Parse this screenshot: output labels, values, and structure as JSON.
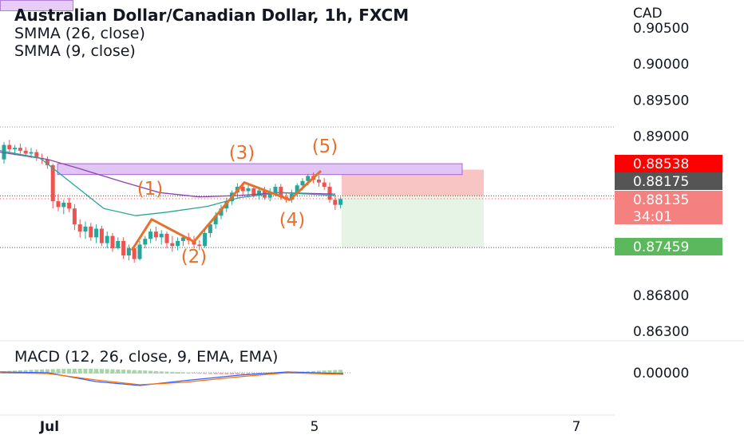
{
  "header": {
    "title": "Australian Dollar/Canadian Dollar, 1h, FXCM",
    "ind1": "SMMA (26, close)",
    "ind2": "SMMA (9, close)",
    "macd": "MACD (12, 26, close, 9, EMA, EMA)"
  },
  "colors": {
    "up": "#26a69a",
    "down": "#ef5350",
    "wave": "#e8702a",
    "smma26": "#8e44ad",
    "smma9": "#26a69a",
    "zone": "#e1c6f5",
    "loss": "#f8c4c4",
    "profit": "#e6f4e6",
    "tagRed": "#ff0000",
    "tagDark": "#555555",
    "tagPink": "#f48080",
    "tagGreen": "#5cb85c",
    "macd": "#2962ff",
    "signal": "#ff6d00"
  },
  "chart_data": {
    "type": "candlestick",
    "symbol": "Australian Dollar/Canadian Dollar",
    "timeframe": "1h",
    "currency": "CAD",
    "y_ticks": [
      "0.90500",
      "0.90000",
      "0.89500",
      "0.89000",
      "0.86800",
      "0.86300"
    ],
    "ylim": [
      0.86,
      0.907
    ],
    "x_ticks": [
      "Jul",
      "5",
      "7"
    ],
    "candles": [
      [
        0.8868,
        0.8892,
        0.8862,
        0.8888
      ],
      [
        0.8888,
        0.8895,
        0.8878,
        0.8882
      ],
      [
        0.8882,
        0.8888,
        0.8874,
        0.8884
      ],
      [
        0.8884,
        0.889,
        0.8876,
        0.888
      ],
      [
        0.888,
        0.8885,
        0.8872,
        0.8876
      ],
      [
        0.8876,
        0.8884,
        0.887,
        0.8878
      ],
      [
        0.8878,
        0.8882,
        0.8866,
        0.887
      ],
      [
        0.887,
        0.8876,
        0.8862,
        0.8868
      ],
      [
        0.8868,
        0.8872,
        0.8855,
        0.886
      ],
      [
        0.886,
        0.8862,
        0.88,
        0.881
      ],
      [
        0.881,
        0.882,
        0.8796,
        0.8802
      ],
      [
        0.8802,
        0.8812,
        0.8792,
        0.8808
      ],
      [
        0.8808,
        0.8815,
        0.8795,
        0.88
      ],
      [
        0.88,
        0.8806,
        0.877,
        0.8778
      ],
      [
        0.8778,
        0.8785,
        0.876,
        0.8768
      ],
      [
        0.8768,
        0.8782,
        0.8758,
        0.8775
      ],
      [
        0.8775,
        0.878,
        0.8755,
        0.876
      ],
      [
        0.876,
        0.8778,
        0.8752,
        0.8772
      ],
      [
        0.8772,
        0.8776,
        0.8748,
        0.8752
      ],
      [
        0.8752,
        0.8768,
        0.8745,
        0.8762
      ],
      [
        0.8762,
        0.8766,
        0.874,
        0.8745
      ],
      [
        0.8745,
        0.876,
        0.8743,
        0.8755
      ],
      [
        0.8755,
        0.876,
        0.873,
        0.8735
      ],
      [
        0.8735,
        0.875,
        0.8728,
        0.8745
      ],
      [
        0.8745,
        0.8748,
        0.8725,
        0.873
      ],
      [
        0.873,
        0.8755,
        0.8728,
        0.875
      ],
      [
        0.875,
        0.8762,
        0.8745,
        0.8758
      ],
      [
        0.8758,
        0.8772,
        0.8752,
        0.8768
      ],
      [
        0.8768,
        0.8775,
        0.8755,
        0.876
      ],
      [
        0.876,
        0.877,
        0.875,
        0.8765
      ],
      [
        0.8765,
        0.8768,
        0.8745,
        0.8752
      ],
      [
        0.8752,
        0.8762,
        0.874,
        0.8748
      ],
      [
        0.8748,
        0.876,
        0.8742,
        0.8755
      ],
      [
        0.8755,
        0.8764,
        0.8748,
        0.876
      ],
      [
        0.876,
        0.8766,
        0.875,
        0.8756
      ],
      [
        0.8756,
        0.8762,
        0.8745,
        0.875
      ],
      [
        0.875,
        0.8756,
        0.8742,
        0.8748
      ],
      [
        0.8748,
        0.877,
        0.8746,
        0.8766
      ],
      [
        0.8766,
        0.8782,
        0.876,
        0.8778
      ],
      [
        0.8778,
        0.8795,
        0.8772,
        0.879
      ],
      [
        0.879,
        0.8805,
        0.8785,
        0.88
      ],
      [
        0.88,
        0.8815,
        0.8795,
        0.881
      ],
      [
        0.881,
        0.8825,
        0.8805,
        0.8822
      ],
      [
        0.8822,
        0.8835,
        0.8815,
        0.883
      ],
      [
        0.883,
        0.8836,
        0.8818,
        0.8824
      ],
      [
        0.8824,
        0.8834,
        0.8815,
        0.8828
      ],
      [
        0.8828,
        0.8832,
        0.8815,
        0.8818
      ],
      [
        0.8818,
        0.883,
        0.8812,
        0.8825
      ],
      [
        0.8825,
        0.883,
        0.8812,
        0.8815
      ],
      [
        0.8815,
        0.8828,
        0.881,
        0.8822
      ],
      [
        0.8822,
        0.8834,
        0.8818,
        0.883
      ],
      [
        0.883,
        0.8834,
        0.8812,
        0.8816
      ],
      [
        0.8816,
        0.8822,
        0.8808,
        0.8812
      ],
      [
        0.8812,
        0.8826,
        0.8808,
        0.882
      ],
      [
        0.882,
        0.8835,
        0.8816,
        0.8832
      ],
      [
        0.8832,
        0.8842,
        0.8825,
        0.8838
      ],
      [
        0.8838,
        0.8848,
        0.8832,
        0.8845
      ],
      [
        0.8845,
        0.885,
        0.8835,
        0.884
      ],
      [
        0.884,
        0.8846,
        0.883,
        0.8836
      ],
      [
        0.8836,
        0.8842,
        0.8826,
        0.883
      ],
      [
        0.883,
        0.8836,
        0.8808,
        0.8812
      ],
      [
        0.8812,
        0.8818,
        0.8798,
        0.8805
      ],
      [
        0.8805,
        0.8816,
        0.88,
        0.8813
      ]
    ],
    "smma26": [
      [
        0,
        0.8878
      ],
      [
        60,
        0.8868
      ],
      [
        100,
        0.8855
      ],
      [
        150,
        0.8838
      ],
      [
        200,
        0.8822
      ],
      [
        250,
        0.8816
      ],
      [
        300,
        0.8818
      ],
      [
        350,
        0.8822
      ],
      [
        420,
        0.882
      ]
    ],
    "smma9": [
      [
        0,
        0.888
      ],
      [
        50,
        0.887
      ],
      [
        90,
        0.8835
      ],
      [
        130,
        0.88
      ],
      [
        170,
        0.879
      ],
      [
        210,
        0.8795
      ],
      [
        260,
        0.8803
      ],
      [
        300,
        0.8815
      ],
      [
        350,
        0.8822
      ],
      [
        420,
        0.8818
      ]
    ],
    "annotations": {
      "resistance_zone": [
        0.8847,
        0.8862
      ],
      "elliott_wave": [
        {
          "label": "(1)",
          "price": 0.8785
        },
        {
          "label": "(2)",
          "price": 0.8754
        },
        {
          "label": "(3)",
          "price": 0.8836
        },
        {
          "label": "(4)",
          "price": 0.8812
        },
        {
          "label": "(5)",
          "price": 0.8852
        }
      ],
      "position": {
        "stop": 0.88538,
        "entry": 0.88175,
        "target": 0.87459
      }
    },
    "price_tags": [
      {
        "label": "0.88538",
        "price": 0.88538,
        "style": "red"
      },
      {
        "label": "0.88175",
        "price": 0.88175,
        "style": "dark"
      },
      {
        "label": "0.88135",
        "price": 0.88135,
        "sub": "34:01",
        "style": "pink"
      },
      {
        "label": "0.87459",
        "price": 0.87459,
        "style": "green"
      }
    ],
    "macd": {
      "zero_label": "0.00000"
    }
  }
}
